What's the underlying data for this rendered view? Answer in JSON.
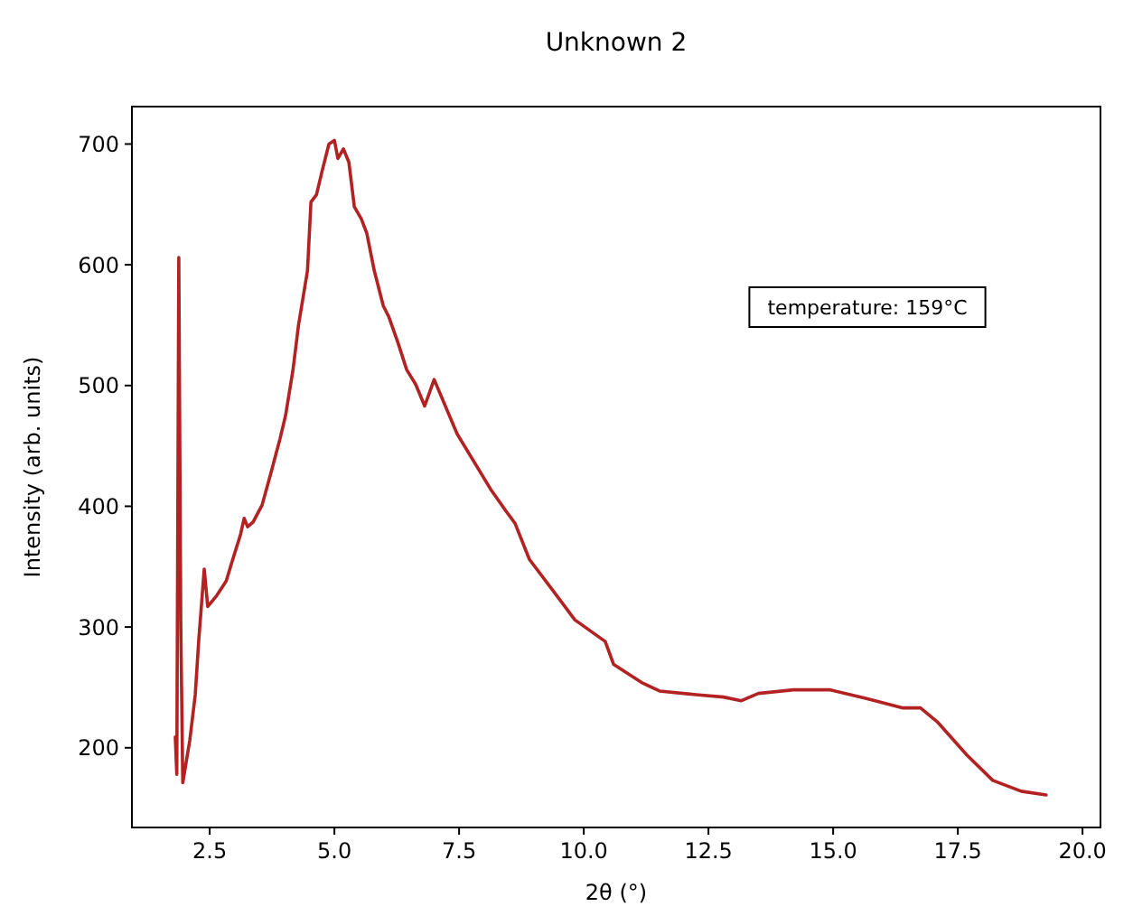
{
  "chart_data": {
    "type": "line",
    "title": "Unknown 2",
    "xlabel": "2θ (°)",
    "ylabel": "Intensity (arb. units)",
    "xlim": [
      0.94,
      20.36
    ],
    "ylim": [
      134,
      731
    ],
    "xticks": [
      {
        "value": 2.5,
        "label": "2.5"
      },
      {
        "value": 5,
        "label": "5.0"
      },
      {
        "value": 7.5,
        "label": "7.5"
      },
      {
        "value": 10,
        "label": "10.0"
      },
      {
        "value": 12.5,
        "label": "12.5"
      },
      {
        "value": 15,
        "label": "15.0"
      },
      {
        "value": 17.5,
        "label": "17.5"
      },
      {
        "value": 20,
        "label": "20.0"
      }
    ],
    "yticks": [
      200,
      300,
      400,
      500,
      600,
      700
    ],
    "annotations": [
      "temperature: 159°C"
    ],
    "series": [
      {
        "color": "#b22222",
        "x": [
          1.81,
          1.84,
          1.88,
          1.92,
          1.96,
          2.1,
          2.21,
          2.28,
          2.39,
          2.46,
          2.64,
          2.83,
          2.94,
          3.12,
          3.19,
          3.26,
          3.37,
          3.55,
          3.73,
          3.91,
          4.02,
          4.17,
          4.28,
          4.46,
          4.53,
          4.64,
          4.75,
          4.89,
          5.0,
          5.07,
          5.18,
          5.29,
          5.4,
          5.54,
          5.65,
          5.8,
          5.98,
          6.09,
          6.27,
          6.45,
          6.63,
          6.81,
          7.0,
          7.46,
          8.15,
          8.44,
          8.62,
          8.91,
          9.35,
          9.82,
          10.43,
          10.6,
          11.16,
          11.52,
          12.25,
          12.8,
          13.16,
          13.5,
          14.2,
          14.93,
          15.65,
          16.4,
          16.75,
          17.1,
          17.68,
          18.2,
          18.77,
          19.27
        ],
        "values": [
          209,
          178,
          606,
          300,
          171,
          206,
          244,
          289,
          348,
          317,
          326,
          338,
          353,
          377,
          390,
          383,
          387,
          401,
          428,
          456,
          475,
          513,
          550,
          595,
          652,
          658,
          677,
          700,
          703,
          688,
          696,
          685,
          648,
          638,
          626,
          595,
          566,
          557,
          536,
          513,
          501,
          483,
          505,
          460,
          413,
          396,
          386,
          356,
          332,
          306,
          288,
          269,
          254,
          247,
          244,
          242,
          239,
          245,
          248,
          248,
          241,
          233,
          233,
          221,
          194,
          173,
          164,
          161
        ]
      }
    ]
  }
}
